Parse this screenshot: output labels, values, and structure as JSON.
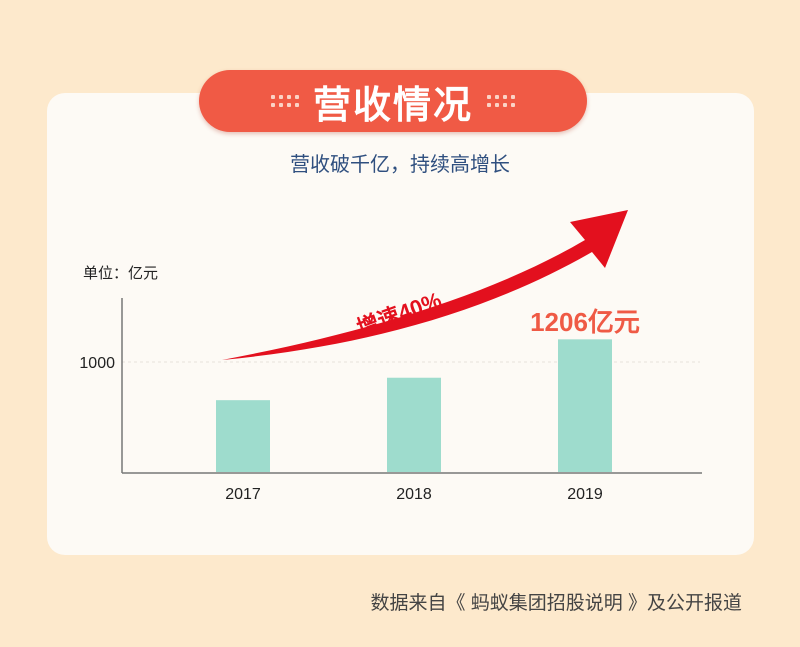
{
  "title": "营收情况",
  "subtitle": "营收破千亿，持续高增长",
  "footer": "数据来自《 蚂蚁集团招股说明 》及公开报道",
  "chart_data": {
    "type": "bar",
    "unit_label": "单位：亿元",
    "categories": [
      "2017",
      "2018",
      "2019"
    ],
    "values": [
      653,
      857,
      1206
    ],
    "yticks": [
      "1000"
    ],
    "ytick_values": [
      1000
    ],
    "ylim": [
      0,
      1300
    ],
    "grid": "dashed line at 1000",
    "annotations": {
      "growth": "增速40%",
      "highlight": "1206亿元"
    },
    "colors": {
      "bar": "#9edccd",
      "arrow": "#e3101e",
      "highlight": "#ef5a45",
      "title_bg": "#f05a45"
    }
  }
}
